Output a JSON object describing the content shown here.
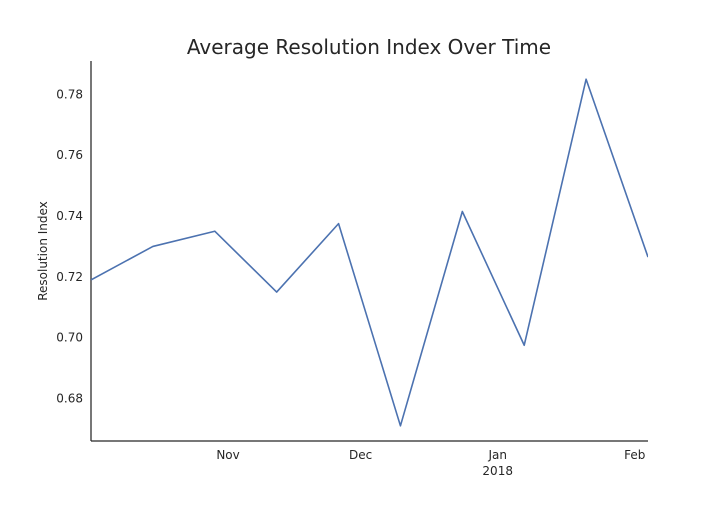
{
  "chart_data": {
    "type": "line",
    "title": "Average Resolution Index Over Time",
    "xlabel": "",
    "ylabel": "Resolution Index",
    "x": [
      "2017-10-01",
      "2017-10-15",
      "2017-10-29",
      "2017-11-12",
      "2017-11-26",
      "2017-12-10",
      "2017-12-24",
      "2018-01-07",
      "2018-01-21",
      "2018-02-04"
    ],
    "series": [
      {
        "values": [
          0.719,
          0.73,
          0.735,
          0.715,
          0.7375,
          0.671,
          0.7415,
          0.6975,
          0.785,
          0.7265
        ]
      }
    ],
    "xlim": [
      "2017-10-01",
      "2018-02-04"
    ],
    "ylim": [
      0.666,
      0.791
    ],
    "x_ticks": [
      {
        "date": "2017-11-01",
        "label": "Nov",
        "sublabel": ""
      },
      {
        "date": "2017-12-01",
        "label": "Dec",
        "sublabel": ""
      },
      {
        "date": "2018-01-01",
        "label": "Jan",
        "sublabel": "2018"
      },
      {
        "date": "2018-02-01",
        "label": "Feb",
        "sublabel": ""
      }
    ],
    "y_ticks": [
      "0.68",
      "0.70",
      "0.72",
      "0.74",
      "0.76",
      "0.78"
    ],
    "grid": false,
    "line_color": "#4c72b0",
    "axis_color": "#262626"
  }
}
